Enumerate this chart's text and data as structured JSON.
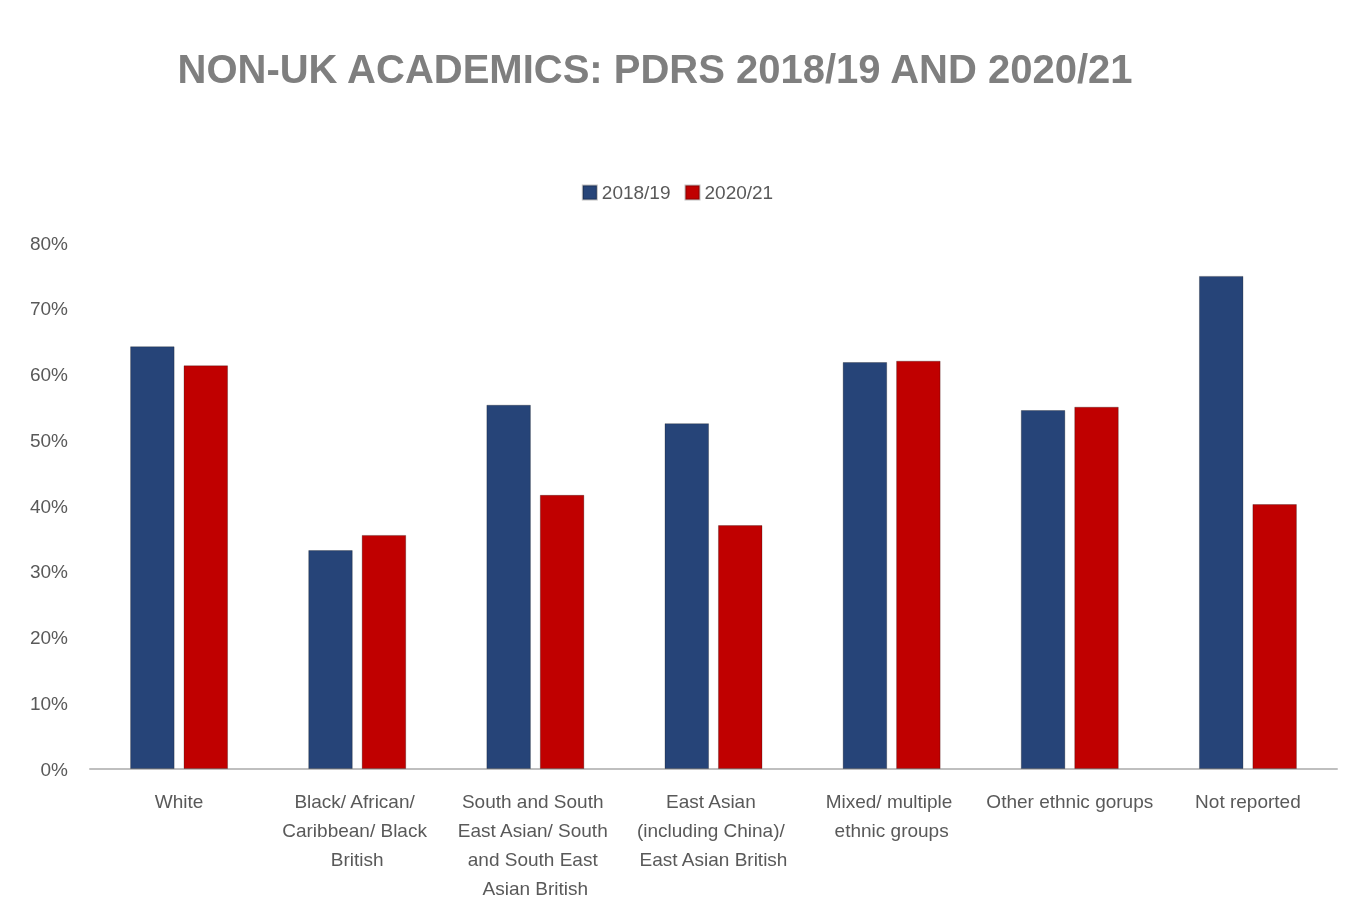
{
  "chart_data": {
    "type": "bar",
    "title": "NON-UK ACADEMICS: PDRS 2018/19 AND 2020/21",
    "categories": [
      "White",
      "Black/ African/ Caribbean/ Black British",
      "South and South East Asian/ South and South East Asian British",
      "East Asian (including China)/ East Asian British",
      "Mixed/ multiple ethnic groups",
      "Other ethnic gorups",
      "Not reported"
    ],
    "series": [
      {
        "name": "2018/19",
        "color": "#264478",
        "values": [
          64.3,
          33.3,
          55.4,
          52.6,
          61.9,
          54.6,
          75.0
        ]
      },
      {
        "name": "2020/21",
        "color": "#c00000",
        "values": [
          61.4,
          35.6,
          41.7,
          37.1,
          62.1,
          55.1,
          40.3
        ]
      }
    ],
    "ylim": [
      0,
      80
    ],
    "yticks": [
      {
        "value": 0,
        "label": "0%"
      },
      {
        "value": 10,
        "label": "10%"
      },
      {
        "value": 20,
        "label": "20%"
      },
      {
        "value": 30,
        "label": "30%"
      },
      {
        "value": 40,
        "label": "40%"
      },
      {
        "value": 50,
        "label": "50%"
      },
      {
        "value": 60,
        "label": "60%"
      },
      {
        "value": 70,
        "label": "70%"
      },
      {
        "value": 80,
        "label": "80%"
      }
    ],
    "grid": false,
    "legend": "top"
  }
}
